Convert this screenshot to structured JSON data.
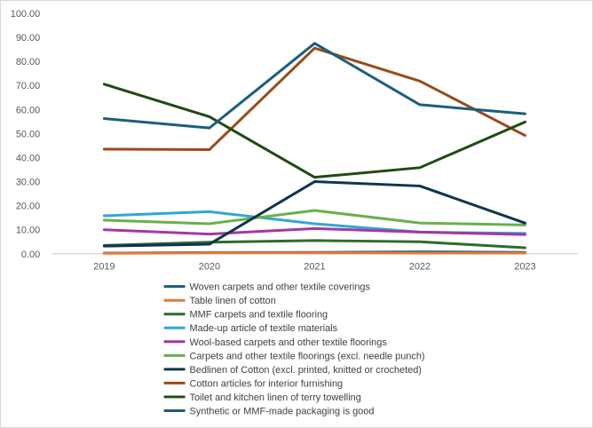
{
  "chart_data": {
    "type": "line",
    "title": "",
    "xlabel": "",
    "ylabel": "",
    "x": [
      "2019",
      "2020",
      "2021",
      "2022",
      "2023"
    ],
    "ylim": [
      0,
      100
    ],
    "yticks": [
      "0.00",
      "10.00",
      "20.00",
      "30.00",
      "40.00",
      "50.00",
      "60.00",
      "70.00",
      "80.00",
      "90.00",
      "100.00"
    ],
    "grid": false,
    "legend_position": "bottom",
    "series": [
      {
        "name": "Woven carpets and other textile coverings",
        "color": "#1f5c82",
        "values": [
          0.3,
          0.5,
          0.6,
          0.8,
          0.6
        ]
      },
      {
        "name": "Table linen of cotton",
        "color": "#e07b39",
        "values": [
          0.2,
          0.4,
          0.4,
          0.3,
          0.3
        ]
      },
      {
        "name": "MMF carpets and textile flooring",
        "color": "#2e6b2e",
        "values": [
          3.5,
          4.8,
          5.5,
          5.0,
          2.5
        ]
      },
      {
        "name": "Made-up article of textile materials",
        "color": "#33a6d6",
        "values": [
          15.8,
          17.5,
          12.5,
          9.0,
          8.5
        ]
      },
      {
        "name": "Wool-based carpets and other textile floorings",
        "color": "#a338a3",
        "values": [
          10.0,
          8.2,
          10.5,
          9.0,
          8.0
        ]
      },
      {
        "name": "Carpets and other textile floorings (excl. needle punch)",
        "color": "#6ab04c",
        "values": [
          14.0,
          12.5,
          18.0,
          12.8,
          12.0
        ]
      },
      {
        "name": "Bedlinen of Cotton (excl. printed, knitted or crocheted)",
        "color": "#0d3550",
        "values": [
          3.2,
          4.0,
          30.0,
          28.2,
          12.8
        ]
      },
      {
        "name": "Cotton articles for interior furnishing",
        "color": "#9c4a16",
        "values": [
          43.5,
          43.3,
          85.5,
          71.8,
          49.2
        ]
      },
      {
        "name": "Toilet and kitchen linen of terry towelling",
        "color": "#1f4a14",
        "values": [
          70.5,
          57.0,
          31.8,
          35.8,
          54.8
        ]
      },
      {
        "name": "Synthetic or MMF-made packaging is good",
        "color": "#1c5d80",
        "values": [
          56.2,
          52.3,
          87.5,
          62.0,
          58.2
        ]
      }
    ]
  }
}
